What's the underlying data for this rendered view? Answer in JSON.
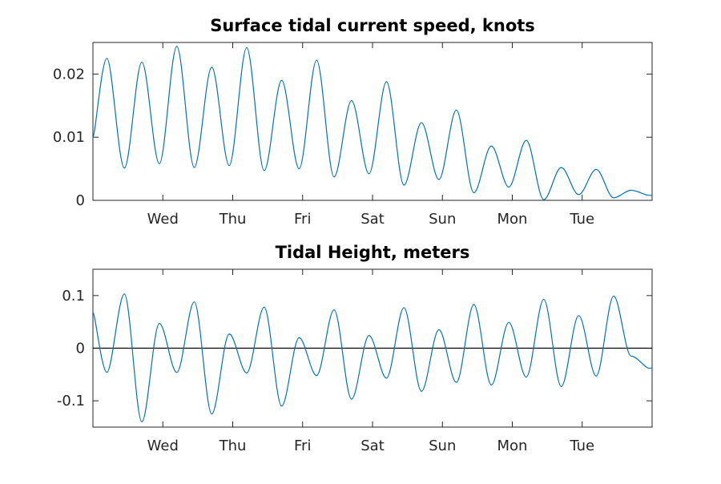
{
  "chart_data": [
    {
      "type": "line",
      "title": "Surface tidal current speed, knots",
      "xlabel": "",
      "ylabel": "",
      "x_tick_labels": [
        "Wed",
        "Thu",
        "Fri",
        "Sat",
        "Sun",
        "Mon",
        "Tue"
      ],
      "y_ticks": [
        0,
        0.01,
        0.02
      ],
      "y_tick_labels": [
        "0",
        "0.01",
        "0.02"
      ],
      "ylim": [
        0,
        0.025
      ],
      "xlim_days": [
        0,
        8
      ],
      "grid": false,
      "line_color": "#0072BD",
      "series": [
        {
          "x_days": [
            0,
            0.2,
            0.45,
            0.7,
            0.95,
            1.2,
            1.45,
            1.7,
            1.95,
            2.2,
            2.45,
            2.7,
            2.95,
            3.2,
            3.45,
            3.7,
            3.95,
            4.2,
            4.45,
            4.7,
            4.95,
            5.2,
            5.45,
            5.7,
            5.95,
            6.2,
            6.45,
            6.7,
            6.95,
            7.2,
            7.45,
            7.7,
            7.95,
            8.0
          ],
          "values": [
            0.01,
            0.0225,
            0.0051,
            0.0219,
            0.0058,
            0.0244,
            0.0052,
            0.0211,
            0.0055,
            0.0242,
            0.0047,
            0.019,
            0.005,
            0.0222,
            0.0037,
            0.0158,
            0.0042,
            0.0188,
            0.0024,
            0.0123,
            0.0033,
            0.0143,
            0.0012,
            0.0086,
            0.0021,
            0.0095,
            0.0001,
            0.0052,
            0.0009,
            0.0049,
            0.0004,
            0.0016,
            0.0008,
            0.0007
          ]
        }
      ]
    },
    {
      "type": "line",
      "title": "Tidal Height, meters",
      "xlabel": "",
      "ylabel": "",
      "x_tick_labels": [
        "Wed",
        "Thu",
        "Fri",
        "Sat",
        "Sun",
        "Mon",
        "Tue"
      ],
      "y_ticks": [
        -0.1,
        0,
        0.1
      ],
      "y_tick_labels": [
        "-0.1",
        "0",
        "0.1"
      ],
      "ylim": [
        -0.15,
        0.15
      ],
      "xlim_days": [
        0,
        8
      ],
      "grid": false,
      "zero_line": true,
      "line_color": "#0072BD",
      "series": [
        {
          "x_days": [
            0,
            0.2,
            0.45,
            0.7,
            0.95,
            1.2,
            1.45,
            1.7,
            1.95,
            2.2,
            2.45,
            2.7,
            2.95,
            3.2,
            3.45,
            3.7,
            3.95,
            4.2,
            4.45,
            4.7,
            4.95,
            5.2,
            5.45,
            5.7,
            5.95,
            6.2,
            6.45,
            6.7,
            6.95,
            7.2,
            7.45,
            7.7,
            7.95,
            8.0
          ],
          "values": [
            0.068,
            -0.046,
            0.103,
            -0.14,
            0.047,
            -0.046,
            0.088,
            -0.125,
            0.027,
            -0.047,
            0.078,
            -0.11,
            0.02,
            -0.052,
            0.073,
            -0.097,
            0.024,
            -0.057,
            0.077,
            -0.082,
            0.035,
            -0.065,
            0.083,
            -0.07,
            0.049,
            -0.055,
            0.093,
            -0.073,
            0.062,
            -0.053,
            0.099,
            -0.015,
            -0.038,
            -0.038
          ]
        }
      ]
    }
  ]
}
